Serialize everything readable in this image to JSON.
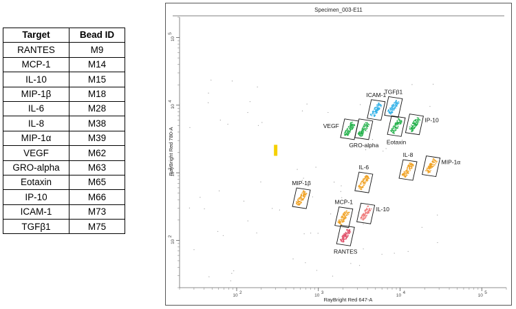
{
  "table": {
    "headers": [
      "Target",
      "Bead ID"
    ],
    "rows": [
      [
        "RANTES",
        "M9"
      ],
      [
        "MCP-1",
        "M14"
      ],
      [
        "IL-10",
        "M15"
      ],
      [
        "MIP-1β",
        "M18"
      ],
      [
        "IL-6",
        "M28"
      ],
      [
        "IL-8",
        "M38"
      ],
      [
        "MIP-1α",
        "M39"
      ],
      [
        "VEGF",
        "M62"
      ],
      [
        "GRO-alpha",
        "M63"
      ],
      [
        "Eotaxin",
        "M65"
      ],
      [
        "IP-10",
        "M66"
      ],
      [
        "ICAM-1",
        "M73"
      ],
      [
        "TGFβ1",
        "M75"
      ]
    ]
  },
  "chart_data": {
    "type": "scatter",
    "title": "Specimen_003-E11",
    "xlabel": "RayBright Red 647-A",
    "ylabel": "RayBright Red 780-A",
    "xscale": "log",
    "yscale": "log",
    "xlim": [
      20,
      200000
    ],
    "ylim": [
      20,
      200000
    ],
    "xticks": [
      {
        "base": "10",
        "exp": "2"
      },
      {
        "base": "10",
        "exp": "3"
      },
      {
        "base": "10",
        "exp": "4"
      },
      {
        "base": "10",
        "exp": "5"
      }
    ],
    "yticks": [
      {
        "base": "10",
        "exp": "2"
      },
      {
        "base": "10",
        "exp": "3"
      },
      {
        "base": "10",
        "exp": "4"
      },
      {
        "base": "10",
        "exp": "5"
      }
    ],
    "grid": false,
    "populations": [
      {
        "label": "RANTES",
        "x": 2150,
        "y": 118,
        "color": "#e0506a",
        "label_pos": "below"
      },
      {
        "label": "MCP-1",
        "x": 2050,
        "y": 220,
        "color": "#f0a020",
        "label_pos": "above"
      },
      {
        "label": "IL-10",
        "x": 3800,
        "y": 250,
        "color": "#ee7a7a",
        "label_pos": "right"
      },
      {
        "label": "MIP-1β",
        "x": 620,
        "y": 420,
        "color": "#f0a020",
        "label_pos": "above"
      },
      {
        "label": "IL-6",
        "x": 3600,
        "y": 720,
        "color": "#f0a020",
        "label_pos": "above"
      },
      {
        "label": "IL-8",
        "x": 12500,
        "y": 1100,
        "color": "#f0a020",
        "label_pos": "above"
      },
      {
        "label": "MIP-1α",
        "x": 24000,
        "y": 1250,
        "color": "#f0a020",
        "label_pos": "right"
      },
      {
        "label": "VEGF",
        "x": 2400,
        "y": 4400,
        "color": "#22b04a",
        "label_pos": "left"
      },
      {
        "label": "GRO-alpha",
        "x": 3600,
        "y": 4400,
        "color": "#22b04a",
        "label_pos": "below"
      },
      {
        "label": "Eotaxin",
        "x": 9000,
        "y": 4900,
        "color": "#22b04a",
        "label_pos": "below"
      },
      {
        "label": "IP-10",
        "x": 15000,
        "y": 5200,
        "color": "#22b04a",
        "label_pos": "right"
      },
      {
        "label": "ICAM-1",
        "x": 5100,
        "y": 8500,
        "color": "#30b0e8",
        "label_pos": "above"
      },
      {
        "label": "TGFβ1",
        "x": 8300,
        "y": 9400,
        "color": "#30b0e8",
        "label_pos": "above"
      }
    ],
    "outlier_marker": {
      "x": 300,
      "y": 2150,
      "color": "#f5d000"
    }
  }
}
